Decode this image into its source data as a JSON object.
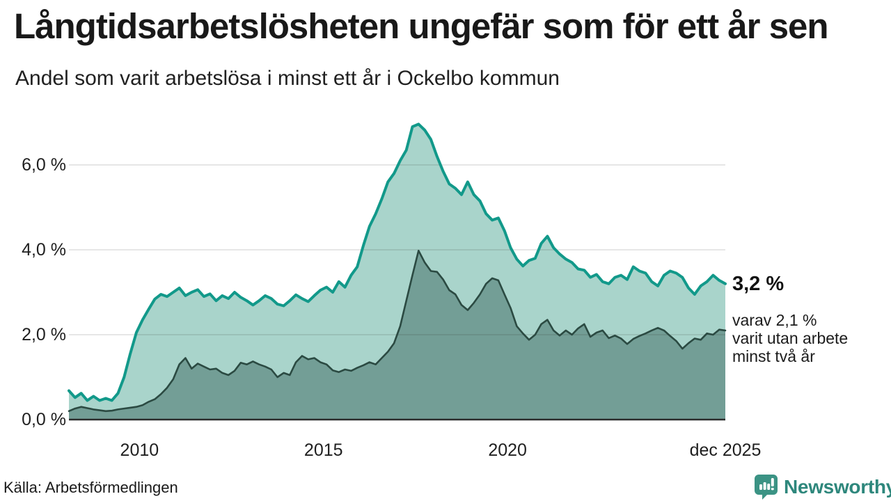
{
  "header": {
    "title": "Långtidsarbetslösheten ungefär som för ett år sen",
    "subtitle": "Andel som varit arbetslösa i minst ett år i Ockelbo kommun"
  },
  "annotation": {
    "value": "3,2 %",
    "note_lines": [
      "varav 2,1 %",
      "varit utan arbete",
      "minst två år"
    ]
  },
  "footer": {
    "source": "Källa: Arbetsförmedlingen",
    "brand": "Newsworthy"
  },
  "colors": {
    "light_fill": "#a9d4cb",
    "light_line": "#12998a",
    "dark_fill": "#739e96",
    "dark_line": "#2b4a42",
    "grid": "rgba(30,30,30,0.13)",
    "axis": "#2d2d2d",
    "brand_teal": "#2e877c",
    "icon_teal": "#3b9384"
  },
  "chart_data": {
    "type": "area",
    "title": "Andel som varit arbetslösa i minst ett år i Ockelbo kommun",
    "x_start_year": 2008.083,
    "x_end_year": 2025.917,
    "x_note": "values every 2nd month, Feb 2008 - Dec 2025",
    "ylim": [
      0,
      7.2
    ],
    "grid": true,
    "yticks": [
      {
        "label": "0,0 %",
        "value": 0
      },
      {
        "label": "2,0 %",
        "value": 2
      },
      {
        "label": "4,0 %",
        "value": 4
      },
      {
        "label": "6,0 %",
        "value": 6
      }
    ],
    "xticks": [
      {
        "label": "2010",
        "year": 2010
      },
      {
        "label": "2015",
        "year": 2015
      },
      {
        "label": "2020",
        "year": 2020
      },
      {
        "label": "dec 2025",
        "year": 2025.917
      }
    ],
    "series": [
      {
        "name": "Andel arbetslösa minst ett år",
        "end_value_label": "3,2 %",
        "fill": "#a9d4cb",
        "line": "#12998a",
        "line_width": 4,
        "values": [
          0.68,
          0.52,
          0.62,
          0.45,
          0.55,
          0.45,
          0.5,
          0.45,
          0.62,
          1.0,
          1.55,
          2.05,
          2.35,
          2.6,
          2.84,
          2.95,
          2.9,
          3.0,
          3.1,
          2.92,
          3.0,
          3.06,
          2.9,
          2.96,
          2.8,
          2.92,
          2.85,
          3.0,
          2.88,
          2.8,
          2.7,
          2.8,
          2.92,
          2.85,
          2.72,
          2.68,
          2.8,
          2.94,
          2.85,
          2.78,
          2.92,
          3.05,
          3.12,
          3.0,
          3.25,
          3.12,
          3.4,
          3.6,
          4.1,
          4.55,
          4.85,
          5.2,
          5.6,
          5.8,
          6.1,
          6.35,
          6.9,
          6.96,
          6.82,
          6.6,
          6.2,
          5.85,
          5.55,
          5.45,
          5.3,
          5.6,
          5.3,
          5.15,
          4.85,
          4.7,
          4.75,
          4.45,
          4.05,
          3.78,
          3.62,
          3.75,
          3.8,
          4.15,
          4.32,
          4.05,
          3.9,
          3.78,
          3.7,
          3.55,
          3.52,
          3.35,
          3.42,
          3.25,
          3.2,
          3.35,
          3.4,
          3.3,
          3.6,
          3.5,
          3.45,
          3.25,
          3.15,
          3.4,
          3.5,
          3.45,
          3.35,
          3.1,
          2.95,
          3.15,
          3.25,
          3.4,
          3.28,
          3.2
        ]
      },
      {
        "name": "varav arbetslösa minst två år",
        "end_value_label": "2,1 %",
        "fill": "#739e96",
        "line": "#2b4a42",
        "line_width": 2.6,
        "values": [
          0.2,
          0.26,
          0.3,
          0.27,
          0.24,
          0.22,
          0.2,
          0.21,
          0.24,
          0.26,
          0.28,
          0.3,
          0.34,
          0.42,
          0.48,
          0.6,
          0.75,
          0.95,
          1.3,
          1.45,
          1.2,
          1.32,
          1.25,
          1.18,
          1.2,
          1.1,
          1.05,
          1.15,
          1.34,
          1.3,
          1.37,
          1.3,
          1.25,
          1.18,
          1.0,
          1.1,
          1.05,
          1.35,
          1.5,
          1.42,
          1.45,
          1.35,
          1.3,
          1.16,
          1.12,
          1.18,
          1.15,
          1.22,
          1.28,
          1.35,
          1.3,
          1.45,
          1.6,
          1.8,
          2.2,
          2.8,
          3.4,
          3.98,
          3.7,
          3.5,
          3.48,
          3.3,
          3.05,
          2.95,
          2.7,
          2.58,
          2.75,
          2.95,
          3.2,
          3.33,
          3.28,
          2.95,
          2.63,
          2.2,
          2.03,
          1.88,
          2.0,
          2.25,
          2.35,
          2.1,
          1.98,
          2.1,
          2.0,
          2.15,
          2.25,
          1.95,
          2.05,
          2.1,
          1.92,
          1.98,
          1.91,
          1.78,
          1.9,
          1.97,
          2.03,
          2.1,
          2.16,
          2.1,
          1.97,
          1.85,
          1.67,
          1.8,
          1.91,
          1.88,
          2.03,
          2.0,
          2.12,
          2.1
        ]
      }
    ]
  }
}
